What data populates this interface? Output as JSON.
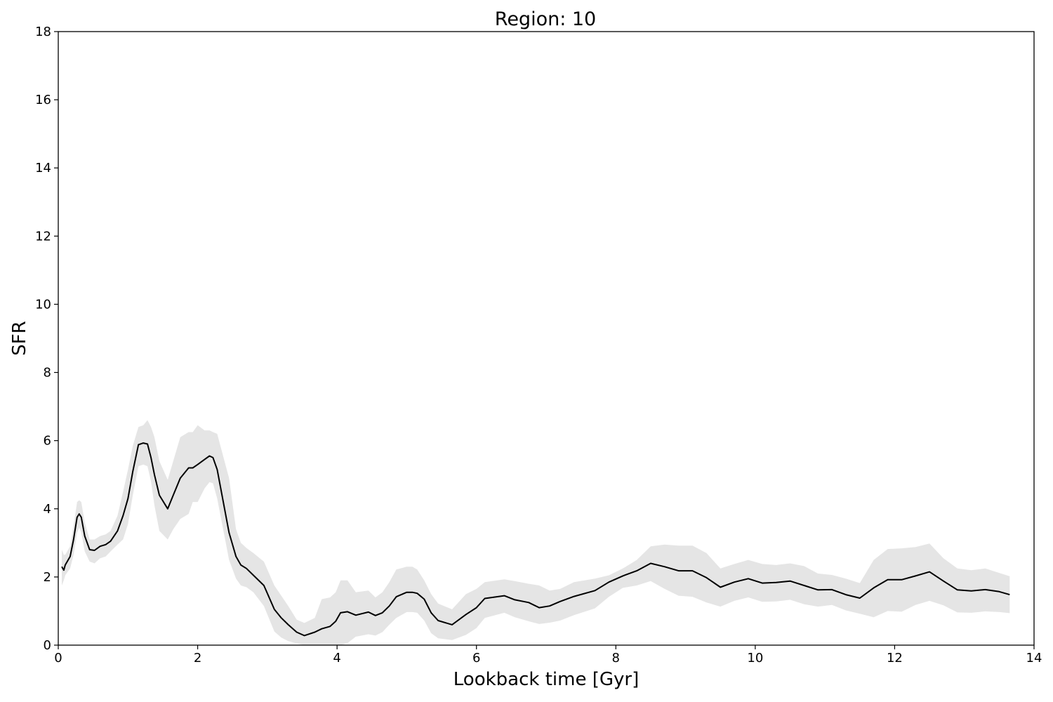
{
  "chart_data": {
    "type": "line",
    "title": "Region: 10",
    "xlabel": "Lookback time [Gyr]",
    "ylabel": "SFR",
    "xlim": [
      0,
      14
    ],
    "ylim": [
      0,
      18
    ],
    "xticks": [
      0,
      2,
      4,
      6,
      8,
      10,
      12,
      14
    ],
    "yticks": [
      0,
      2,
      4,
      6,
      8,
      10,
      12,
      14,
      16,
      18
    ],
    "grid": false,
    "legend": "none",
    "colors": {
      "line": "#000000",
      "band": "#e5e5e5"
    },
    "series": [
      {
        "x": [
          0.05,
          0.08,
          0.1,
          0.17,
          0.22,
          0.27,
          0.3,
          0.33,
          0.38,
          0.45,
          0.52,
          0.6,
          0.68,
          0.75,
          0.85,
          0.93,
          1.0,
          1.07,
          1.15,
          1.22,
          1.28,
          1.33,
          1.38,
          1.45,
          1.57,
          1.65,
          1.75,
          1.87,
          1.93,
          2.0,
          2.1,
          2.17,
          2.22,
          2.28,
          2.45,
          2.55,
          2.62,
          2.7,
          2.8,
          2.95,
          3.1,
          3.2,
          3.3,
          3.42,
          3.53,
          3.68,
          3.78,
          3.9,
          3.98,
          4.05,
          4.15,
          4.27,
          4.45,
          4.55,
          4.65,
          4.75,
          4.85,
          5.0,
          5.08,
          5.15,
          5.25,
          5.35,
          5.45,
          5.65,
          5.85,
          6.0,
          6.12,
          6.4,
          6.55,
          6.75,
          6.9,
          7.05,
          7.2,
          7.4,
          7.7,
          7.9,
          8.1,
          8.3,
          8.5,
          8.7,
          8.9,
          9.1,
          9.3,
          9.5,
          9.7,
          9.9,
          10.1,
          10.3,
          10.5,
          10.7,
          10.9,
          11.1,
          11.3,
          11.5,
          11.7,
          11.9,
          12.1,
          12.3,
          12.5,
          12.7,
          12.9,
          13.1,
          13.3,
          13.5,
          13.65
        ],
        "values": [
          2.3,
          2.2,
          2.35,
          2.6,
          3.1,
          3.75,
          3.85,
          3.75,
          3.2,
          2.8,
          2.78,
          2.9,
          2.95,
          3.05,
          3.35,
          3.8,
          4.3,
          5.1,
          5.88,
          5.93,
          5.9,
          5.5,
          5.0,
          4.4,
          4.0,
          4.4,
          4.9,
          5.2,
          5.2,
          5.3,
          5.45,
          5.55,
          5.5,
          5.15,
          3.3,
          2.6,
          2.35,
          2.25,
          2.05,
          1.75,
          1.05,
          0.8,
          0.6,
          0.38,
          0.28,
          0.38,
          0.48,
          0.55,
          0.7,
          0.95,
          0.98,
          0.88,
          0.97,
          0.87,
          0.95,
          1.15,
          1.42,
          1.55,
          1.55,
          1.52,
          1.35,
          0.95,
          0.72,
          0.6,
          0.9,
          1.1,
          1.37,
          1.45,
          1.33,
          1.25,
          1.1,
          1.15,
          1.28,
          1.43,
          1.6,
          1.85,
          2.03,
          2.18,
          2.4,
          2.3,
          2.18,
          2.18,
          1.98,
          1.7,
          1.85,
          1.95,
          1.82,
          1.84,
          1.88,
          1.75,
          1.62,
          1.63,
          1.48,
          1.38,
          1.68,
          1.92,
          1.92,
          2.03,
          2.15,
          1.88,
          1.62,
          1.59,
          1.63,
          1.57,
          1.48
        ],
        "lower": [
          1.75,
          1.9,
          2.05,
          2.25,
          2.65,
          3.3,
          3.45,
          3.3,
          2.75,
          2.45,
          2.4,
          2.55,
          2.6,
          2.75,
          2.95,
          3.1,
          3.55,
          4.4,
          5.25,
          5.3,
          5.25,
          4.8,
          4.1,
          3.35,
          3.1,
          3.4,
          3.7,
          3.85,
          4.2,
          4.2,
          4.6,
          4.78,
          4.75,
          4.3,
          2.5,
          1.95,
          1.75,
          1.7,
          1.55,
          1.15,
          0.4,
          0.22,
          0.12,
          0.05,
          0.0,
          0.0,
          0.0,
          0.0,
          0.0,
          0.0,
          0.06,
          0.25,
          0.32,
          0.28,
          0.38,
          0.6,
          0.8,
          0.97,
          0.97,
          0.95,
          0.72,
          0.35,
          0.2,
          0.15,
          0.3,
          0.5,
          0.8,
          0.95,
          0.82,
          0.7,
          0.62,
          0.66,
          0.72,
          0.88,
          1.08,
          1.42,
          1.68,
          1.75,
          1.88,
          1.65,
          1.45,
          1.42,
          1.25,
          1.13,
          1.3,
          1.4,
          1.27,
          1.28,
          1.33,
          1.2,
          1.13,
          1.18,
          1.02,
          0.92,
          0.82,
          1.0,
          0.98,
          1.18,
          1.3,
          1.17,
          0.96,
          0.95,
          0.99,
          0.97,
          0.94
        ],
        "upper": [
          2.8,
          2.65,
          2.65,
          2.9,
          3.5,
          4.2,
          4.25,
          4.2,
          3.6,
          3.1,
          3.1,
          3.2,
          3.25,
          3.35,
          3.8,
          4.5,
          5.15,
          5.85,
          6.4,
          6.45,
          6.6,
          6.4,
          6.1,
          5.4,
          4.85,
          5.4,
          6.1,
          6.25,
          6.25,
          6.45,
          6.3,
          6.3,
          6.25,
          6.2,
          4.9,
          3.4,
          3.0,
          2.85,
          2.7,
          2.45,
          1.75,
          1.45,
          1.15,
          0.75,
          0.65,
          0.8,
          1.35,
          1.4,
          1.55,
          1.9,
          1.9,
          1.55,
          1.6,
          1.4,
          1.55,
          1.85,
          2.22,
          2.3,
          2.3,
          2.22,
          1.9,
          1.5,
          1.22,
          1.05,
          1.5,
          1.65,
          1.85,
          1.93,
          1.88,
          1.8,
          1.75,
          1.6,
          1.65,
          1.85,
          1.95,
          2.05,
          2.25,
          2.5,
          2.9,
          2.95,
          2.92,
          2.92,
          2.7,
          2.25,
          2.38,
          2.5,
          2.38,
          2.35,
          2.4,
          2.32,
          2.1,
          2.06,
          1.95,
          1.82,
          2.5,
          2.82,
          2.84,
          2.88,
          2.98,
          2.55,
          2.25,
          2.2,
          2.25,
          2.12,
          2.02
        ]
      }
    ]
  }
}
